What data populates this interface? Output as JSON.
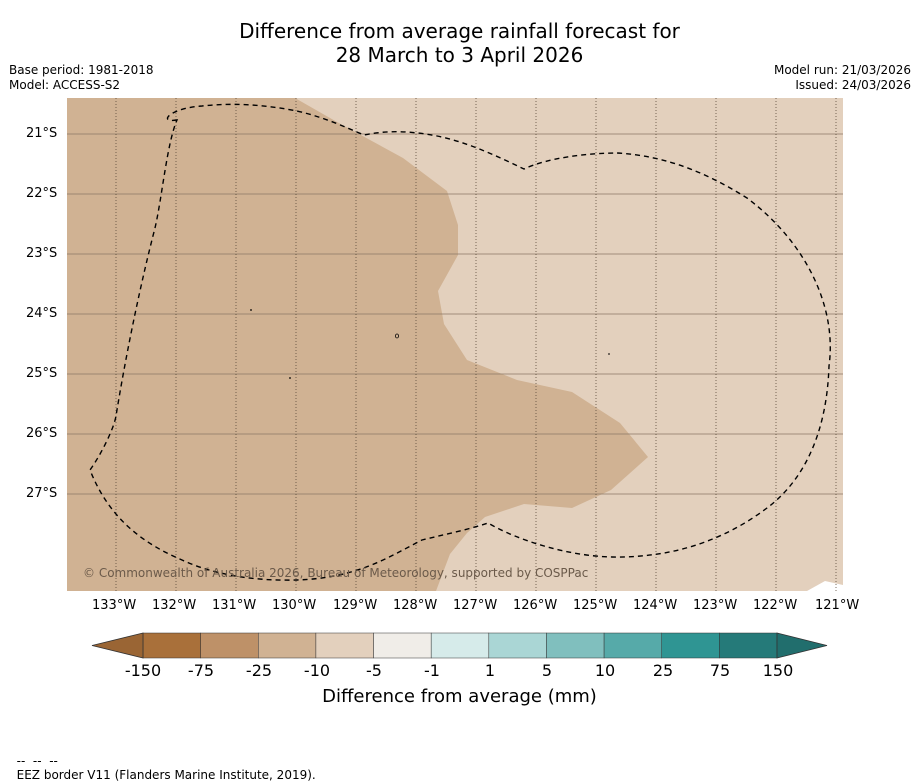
{
  "title": {
    "line1": "Difference from average rainfall forecast for",
    "line2": "28 March to 3 April 2026"
  },
  "meta": {
    "base_period": "Base period: 1981-2018",
    "model": "Model: ACCESS-S2",
    "model_run": "Model run: 21/03/2026",
    "issued": "Issued: 24/03/2026"
  },
  "map": {
    "copyright": "© Commonwealth of Australia 2026, Bureau of Meteorology, supported by COSPPac",
    "lat_labels": [
      "21°S",
      "22°S",
      "23°S",
      "24°S",
      "25°S",
      "26°S",
      "27°S"
    ],
    "lon_labels": [
      "133°W",
      "132°W",
      "131°W",
      "130°W",
      "129°W",
      "128°W",
      "127°W",
      "126°W",
      "125°W",
      "124°W",
      "123°W",
      "122°W",
      "121°W"
    ],
    "colors": {
      "drier_25_75": "#d0b293",
      "drier_10_25": "#e3d0bd",
      "eez_line": "#000000"
    }
  },
  "colorbar": {
    "title": "Difference from average (mm)",
    "labels": [
      "-150",
      "-75",
      "-25",
      "-10",
      "-5",
      "-1",
      "1",
      "5",
      "10",
      "25",
      "75",
      "150"
    ],
    "colors": [
      "#a9703a",
      "#be9168",
      "#d0b293",
      "#e3d0bd",
      "#f0ede8",
      "#ffffff",
      "#d6ebea",
      "#aad6d5",
      "#80bfbe",
      "#56aaa9",
      "#2f9593",
      "#257a79"
    ]
  },
  "footer": {
    "legend_symbol": "--  --  --",
    "legend_text": "EEZ border V11 (Flanders Marine Institute, 2019)."
  }
}
